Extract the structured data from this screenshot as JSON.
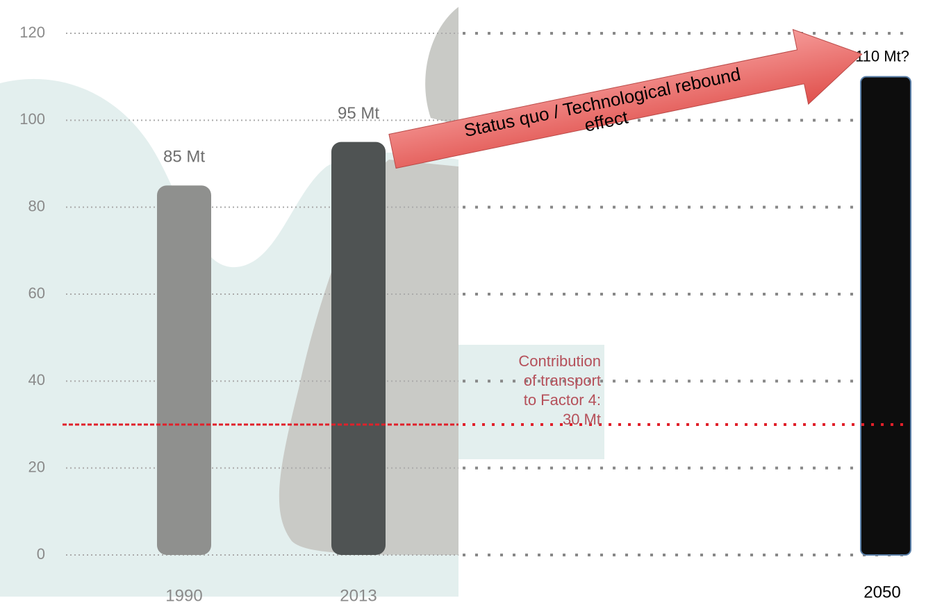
{
  "chart_data": {
    "type": "bar",
    "categories": [
      "1990",
      "2013",
      "2050"
    ],
    "values": [
      85,
      95,
      110
    ],
    "value_labels": [
      "85 Mt",
      "95 Mt",
      "110 Mt?"
    ],
    "colors": [
      "#8f908e",
      "#4f5353",
      "#0d0d0d"
    ],
    "ylim": [
      0,
      120
    ],
    "yticks": [
      0,
      20,
      40,
      60,
      80,
      100,
      120
    ],
    "grid": true,
    "reference_line": {
      "value": 30,
      "color": "#e0202a",
      "label": [
        "Contribution",
        "of transport",
        "to Factor 4:",
        "30 Mt"
      ]
    },
    "annotation": [
      "Status quo / Technological rebound",
      "effect"
    ]
  }
}
